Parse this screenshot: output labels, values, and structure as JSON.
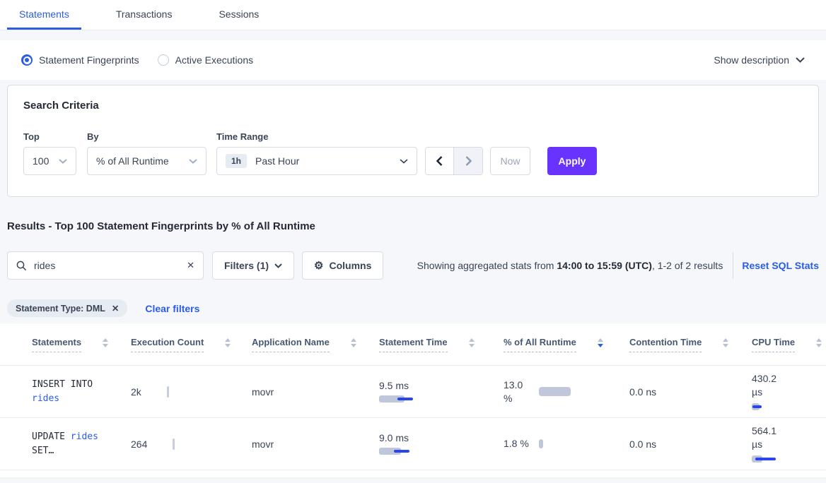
{
  "tabs": [
    {
      "label": "Statements",
      "active": true
    },
    {
      "label": "Transactions",
      "active": false
    },
    {
      "label": "Sessions",
      "active": false
    }
  ],
  "view_toggle": {
    "options": [
      {
        "label": "Statement Fingerprints",
        "selected": true
      },
      {
        "label": "Active Executions",
        "selected": false
      }
    ],
    "show_description_label": "Show description"
  },
  "search_criteria": {
    "title": "Search Criteria",
    "top": {
      "label": "Top",
      "value": "100"
    },
    "by": {
      "label": "By",
      "value": "% of All Runtime"
    },
    "time_range": {
      "label": "Time Range",
      "badge": "1h",
      "value": "Past Hour"
    },
    "now_label": "Now",
    "apply_label": "Apply"
  },
  "results": {
    "heading": "Results - Top 100 Statement Fingerprints by % of All Runtime",
    "search_value": "rides",
    "filters_label": "Filters (1)",
    "columns_label": "Columns",
    "stats_prefix": "Showing aggregated stats from ",
    "stats_bold": "14:00 to 15:59 (UTC)",
    "stats_suffix": ", 1-2 of 2 results",
    "reset_label": "Reset SQL Stats",
    "filter_chip": "Statement Type: DML",
    "clear_filters_label": "Clear filters"
  },
  "table": {
    "headers": [
      "Statements",
      "Execution Count",
      "Application Name",
      "Statement Time",
      "% of All Runtime",
      "Contention Time",
      "CPU Time"
    ],
    "sorted_index": 4,
    "sort_direction": "desc",
    "rows": [
      {
        "statement_prefix": "INSERT INTO ",
        "statement_link": "rides",
        "statement_suffix": "",
        "execution_count": "2k",
        "application_name": "movr",
        "statement_time": "9.5 ms",
        "pct_runtime": "13.0 %",
        "contention_time": "0.0 ns",
        "cpu_time": "430.2 µs",
        "bars": {
          "st_bar": 36,
          "st_line": 22,
          "pct_bar": 45,
          "cpu_bar": 11,
          "cpu_line": 13
        }
      },
      {
        "statement_prefix": "UPDATE ",
        "statement_link": "rides",
        "statement_suffix": " SET…",
        "execution_count": "264",
        "application_name": "movr",
        "statement_time": "9.0 ms",
        "pct_runtime": "1.8 %",
        "contention_time": "0.0 ns",
        "cpu_time": "564.1 µs",
        "bars": {
          "st_bar": 31,
          "st_line": 22,
          "pct_bar": 6,
          "cpu_bar": 15,
          "cpu_line": 29
        }
      }
    ]
  },
  "colors": {
    "accent_purple": "#6933ff",
    "link_blue": "#2a5ce6",
    "bar_gray": "#c0c7da",
    "bar_blue": "#2945ec"
  }
}
